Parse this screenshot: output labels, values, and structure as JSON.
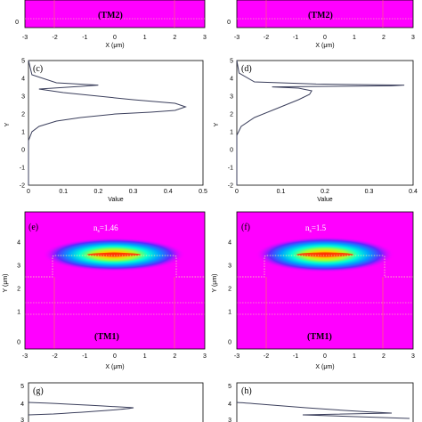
{
  "figure": {
    "top_row": {
      "left": {
        "mode": "(TM2)",
        "x_ticks": [
          "-3",
          "-2",
          "-1",
          "0",
          "1",
          "2",
          "3"
        ],
        "y_ticks": [
          "0"
        ],
        "xlabel": "X (μm)"
      },
      "right": {
        "mode": "(TM2)",
        "x_ticks": [
          "-3",
          "-2",
          "-1",
          "0",
          "1",
          "2",
          "3"
        ],
        "y_ticks": [
          "0"
        ],
        "xlabel": "X (μm)"
      }
    },
    "panel_c": {
      "label": "(c)",
      "xlabel": "Value",
      "ylabel": "Y",
      "x_ticks": [
        "0",
        "0.1",
        "0.2",
        "0.3",
        "0.4",
        "0.5"
      ],
      "y_ticks": [
        "5",
        "4",
        "3",
        "2",
        "1",
        "0",
        "-1",
        "-2"
      ]
    },
    "panel_d": {
      "label": "(d)",
      "xlabel": "Value",
      "ylabel": "Y",
      "x_ticks": [
        "0",
        "0.1",
        "0.2",
        "0.3",
        "0.4"
      ],
      "y_ticks": [
        "5",
        "4",
        "3",
        "2",
        "1",
        "0",
        "-1",
        "-2"
      ]
    },
    "panel_e": {
      "label": "(e)",
      "index": "n",
      "index_sub": "s",
      "index_value": "=1.46",
      "mode": "(TM1)",
      "xlabel": "X (μm)",
      "ylabel": "Y (μm)",
      "x_ticks": [
        "-3",
        "-2",
        "-1",
        "0",
        "1",
        "2",
        "3"
      ],
      "y_ticks": [
        "4",
        "3",
        "2",
        "1",
        "0"
      ]
    },
    "panel_f": {
      "label": "(f)",
      "index": "n",
      "index_sub": "s",
      "index_value": "=1.5",
      "mode": "(TM1)",
      "xlabel": "X (μm)",
      "ylabel": "Y (μm)",
      "x_ticks": [
        "-3",
        "-2",
        "-1",
        "0",
        "1",
        "2",
        "3"
      ],
      "y_ticks": [
        "4",
        "3",
        "2",
        "1",
        "0"
      ]
    },
    "panel_g": {
      "label": "(g)",
      "y_ticks": [
        "5",
        "4",
        "3"
      ]
    },
    "panel_h": {
      "label": "(h)",
      "y_ticks": [
        "5",
        "4",
        "3"
      ]
    }
  },
  "colors": {
    "magenta": "#ff00ff",
    "curve": "#3b3f5c",
    "boundary": "#f5f5a0",
    "guide": "#ff6a6a"
  },
  "chart_data": [
    {
      "type": "line",
      "panel": "(c)",
      "xlabel": "Value",
      "ylabel": "Y",
      "xlim": [
        0,
        0.5
      ],
      "ylim": [
        -2,
        5
      ],
      "series": [
        {
          "x": [
            0.0,
            0.0,
            0.01,
            0.03,
            0.08,
            0.15,
            0.25,
            0.35,
            0.42,
            0.45,
            0.42,
            0.3,
            0.1,
            0.03,
            0.15,
            0.2,
            0.08,
            0.01,
            0.0
          ],
          "y": [
            -2.0,
            0.5,
            1.0,
            1.3,
            1.6,
            1.8,
            2.0,
            2.1,
            2.2,
            2.4,
            2.6,
            2.8,
            3.2,
            3.4,
            3.55,
            3.62,
            3.75,
            4.2,
            5.0
          ]
        }
      ]
    },
    {
      "type": "line",
      "panel": "(d)",
      "xlabel": "Value",
      "ylabel": "Y",
      "xlim": [
        0,
        0.4
      ],
      "ylim": [
        -2,
        5
      ],
      "series": [
        {
          "x": [
            0.0,
            0.0,
            0.01,
            0.04,
            0.09,
            0.14,
            0.165,
            0.17,
            0.14,
            0.08,
            0.35,
            0.38,
            0.18,
            0.04,
            0.005,
            0.0
          ],
          "y": [
            -2.0,
            0.8,
            1.3,
            1.8,
            2.3,
            2.8,
            3.1,
            3.3,
            3.45,
            3.52,
            3.58,
            3.62,
            3.68,
            3.8,
            4.3,
            5.0
          ]
        }
      ]
    }
  ]
}
